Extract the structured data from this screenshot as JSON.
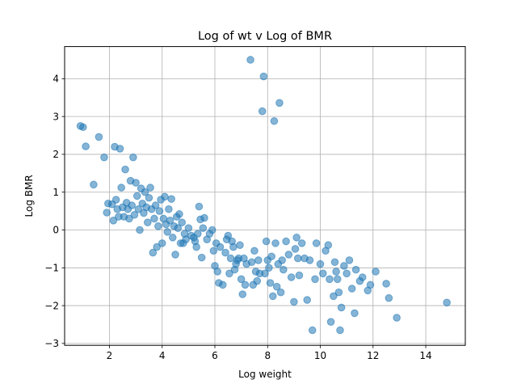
{
  "chart_data": {
    "type": "scatter",
    "title": "Log of wt v Log of BMR",
    "xlabel": "Log weight",
    "ylabel": "Log BMR",
    "xlim": [
      0.3,
      15.5
    ],
    "ylim": [
      -3.05,
      4.85
    ],
    "xticks": [
      "2",
      "4",
      "6",
      "8",
      "10",
      "12",
      "14"
    ],
    "yticks": [
      "−3",
      "−2",
      "−1",
      "0",
      "1",
      "2",
      "3",
      "4"
    ],
    "grid": true,
    "marker_color": "#1f77b4",
    "points": [
      [
        0.9,
        2.75
      ],
      [
        1.0,
        2.72
      ],
      [
        1.1,
        2.21
      ],
      [
        1.4,
        1.2
      ],
      [
        1.6,
        2.46
      ],
      [
        1.8,
        1.92
      ],
      [
        1.9,
        0.46
      ],
      [
        1.95,
        0.7
      ],
      [
        2.1,
        0.68
      ],
      [
        2.15,
        0.25
      ],
      [
        2.2,
        2.2
      ],
      [
        2.25,
        0.8
      ],
      [
        2.3,
        0.55
      ],
      [
        2.35,
        0.35
      ],
      [
        2.4,
        2.15
      ],
      [
        2.45,
        1.12
      ],
      [
        2.5,
        0.6
      ],
      [
        2.55,
        0.35
      ],
      [
        2.6,
        1.6
      ],
      [
        2.65,
        0.72
      ],
      [
        2.7,
        0.55
      ],
      [
        2.75,
        0.3
      ],
      [
        2.8,
        1.3
      ],
      [
        2.85,
        0.65
      ],
      [
        2.9,
        1.92
      ],
      [
        2.95,
        0.4
      ],
      [
        3.0,
        1.25
      ],
      [
        3.05,
        0.9
      ],
      [
        3.1,
        0.55
      ],
      [
        3.15,
        0.0
      ],
      [
        3.2,
        1.1
      ],
      [
        3.25,
        0.7
      ],
      [
        3.3,
        0.45
      ],
      [
        3.35,
        1.0
      ],
      [
        3.4,
        0.6
      ],
      [
        3.45,
        0.2
      ],
      [
        3.5,
        0.85
      ],
      [
        3.55,
        1.12
      ],
      [
        3.6,
        0.55
      ],
      [
        3.65,
        -0.6
      ],
      [
        3.7,
        0.3
      ],
      [
        3.75,
        0.65
      ],
      [
        3.8,
        -0.45
      ],
      [
        3.85,
        0.1
      ],
      [
        3.9,
        0.5
      ],
      [
        3.95,
        0.8
      ],
      [
        4.0,
        -0.35
      ],
      [
        4.05,
        0.3
      ],
      [
        4.1,
        0.88
      ],
      [
        4.15,
        0.15
      ],
      [
        4.2,
        -0.05
      ],
      [
        4.25,
        0.55
      ],
      [
        4.3,
        0.25
      ],
      [
        4.35,
        0.82
      ],
      [
        4.4,
        -0.2
      ],
      [
        4.45,
        0.1
      ],
      [
        4.5,
        -0.65
      ],
      [
        4.55,
        0.35
      ],
      [
        4.6,
        0.05
      ],
      [
        4.65,
        0.42
      ],
      [
        4.7,
        -0.35
      ],
      [
        4.75,
        0.2
      ],
      [
        4.8,
        -0.35
      ],
      [
        4.85,
        -0.1
      ],
      [
        4.9,
        -0.25
      ],
      [
        5.0,
        0.05
      ],
      [
        5.1,
        -0.15
      ],
      [
        5.2,
        -0.2
      ],
      [
        5.25,
        -0.3
      ],
      [
        5.3,
        -0.45
      ],
      [
        5.35,
        -0.1
      ],
      [
        5.4,
        0.62
      ],
      [
        5.45,
        0.28
      ],
      [
        5.5,
        -0.73
      ],
      [
        5.55,
        0.05
      ],
      [
        5.6,
        0.32
      ],
      [
        5.7,
        -0.25
      ],
      [
        5.8,
        -0.1
      ],
      [
        5.9,
        0.0
      ],
      [
        5.95,
        -0.55
      ],
      [
        6.0,
        -0.95
      ],
      [
        6.05,
        -0.35
      ],
      [
        6.1,
        -1.1
      ],
      [
        6.15,
        -1.4
      ],
      [
        6.2,
        -0.45
      ],
      [
        6.3,
        -1.45
      ],
      [
        6.4,
        -0.6
      ],
      [
        6.45,
        -0.25
      ],
      [
        6.5,
        -0.15
      ],
      [
        6.55,
        -1.15
      ],
      [
        6.6,
        -0.75
      ],
      [
        6.65,
        -0.3
      ],
      [
        6.7,
        -0.45
      ],
      [
        6.75,
        -1.05
      ],
      [
        6.8,
        -0.9
      ],
      [
        6.85,
        -0.8
      ],
      [
        6.9,
        -0.75
      ],
      [
        6.95,
        -0.4
      ],
      [
        7.0,
        -1.3
      ],
      [
        7.05,
        -1.7
      ],
      [
        7.1,
        -0.75
      ],
      [
        7.15,
        -1.45
      ],
      [
        7.2,
        -0.9
      ],
      [
        7.35,
        4.5
      ],
      [
        7.4,
        -0.85
      ],
      [
        7.45,
        -1.45
      ],
      [
        7.5,
        -0.55
      ],
      [
        7.55,
        -1.1
      ],
      [
        7.6,
        -1.35
      ],
      [
        7.65,
        -0.8
      ],
      [
        7.7,
        -1.15
      ],
      [
        7.8,
        3.14
      ],
      [
        7.85,
        4.06
      ],
      [
        7.9,
        -1.15
      ],
      [
        7.95,
        -0.3
      ],
      [
        8.0,
        -0.8
      ],
      [
        8.05,
        -1.0
      ],
      [
        8.1,
        -1.4
      ],
      [
        8.15,
        -0.7
      ],
      [
        8.2,
        -1.75
      ],
      [
        8.25,
        2.88
      ],
      [
        8.3,
        -0.35
      ],
      [
        8.35,
        -1.5
      ],
      [
        8.4,
        -0.9
      ],
      [
        8.45,
        3.36
      ],
      [
        8.5,
        -1.65
      ],
      [
        8.55,
        -0.8
      ],
      [
        8.6,
        -1.05
      ],
      [
        8.7,
        -0.3
      ],
      [
        8.8,
        -0.65
      ],
      [
        8.9,
        -1.25
      ],
      [
        9.0,
        -1.9
      ],
      [
        9.05,
        -0.5
      ],
      [
        9.1,
        -0.2
      ],
      [
        9.15,
        -0.75
      ],
      [
        9.2,
        -1.2
      ],
      [
        9.3,
        -0.35
      ],
      [
        9.4,
        -0.75
      ],
      [
        9.5,
        -1.85
      ],
      [
        9.6,
        -0.8
      ],
      [
        9.7,
        -2.65
      ],
      [
        9.8,
        -1.3
      ],
      [
        9.85,
        -0.35
      ],
      [
        10.0,
        -0.9
      ],
      [
        10.1,
        -1.15
      ],
      [
        10.2,
        -0.55
      ],
      [
        10.3,
        -0.4
      ],
      [
        10.35,
        -1.3
      ],
      [
        10.4,
        -2.43
      ],
      [
        10.5,
        -1.75
      ],
      [
        10.55,
        -0.85
      ],
      [
        10.6,
        -1.1
      ],
      [
        10.65,
        -1.3
      ],
      [
        10.7,
        -1.65
      ],
      [
        10.75,
        -2.65
      ],
      [
        10.8,
        -2.05
      ],
      [
        10.9,
        -0.95
      ],
      [
        11.0,
        -1.15
      ],
      [
        11.1,
        -0.8
      ],
      [
        11.2,
        -1.55
      ],
      [
        11.3,
        -2.2
      ],
      [
        11.35,
        -1.05
      ],
      [
        11.5,
        -1.35
      ],
      [
        11.6,
        -1.25
      ],
      [
        11.8,
        -1.6
      ],
      [
        11.9,
        -1.45
      ],
      [
        12.1,
        -1.1
      ],
      [
        12.5,
        -1.42
      ],
      [
        12.6,
        -1.8
      ],
      [
        12.9,
        -2.32
      ],
      [
        14.8,
        -1.92
      ]
    ]
  }
}
